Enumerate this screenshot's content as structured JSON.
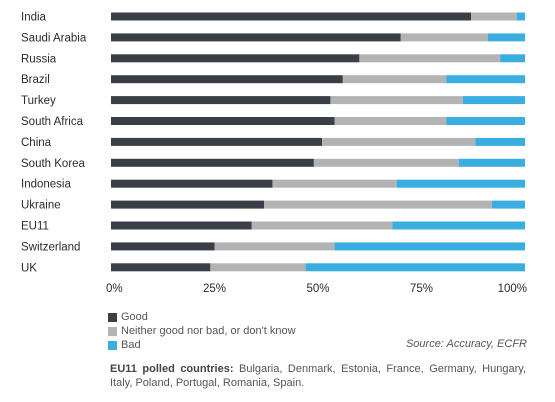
{
  "chart_data": {
    "type": "bar",
    "orientation": "horizontal",
    "stacked": true,
    "categories": [
      "India",
      "Saudi Arabia",
      "Russia",
      "Brazil",
      "Turkey",
      "South Africa",
      "China",
      "South Korea",
      "Indonesia",
      "Ukraine",
      "EU11",
      "Switzerland",
      "UK"
    ],
    "series": [
      {
        "name": "Good",
        "color": "#3a3f47",
        "values": [
          87,
          70,
          60,
          56,
          53,
          54,
          51,
          49,
          39,
          37,
          34,
          25,
          24
        ]
      },
      {
        "name": "Neither good nor bad, or don't know",
        "color": "#b3b3b3",
        "values": [
          11,
          21,
          34,
          25,
          32,
          27,
          37,
          35,
          30,
          55,
          34,
          29,
          23
        ]
      },
      {
        "name": "Bad",
        "color": "#3aaee0",
        "values": [
          2,
          9,
          6,
          19,
          15,
          19,
          12,
          16,
          31,
          8,
          32,
          46,
          53
        ]
      }
    ],
    "xlim": [
      0,
      100
    ],
    "xticks": [
      "0%",
      "25%",
      "50%",
      "75%",
      "100%"
    ],
    "legend_position": "bottom-left"
  },
  "source": "Source: Accuracy, ECFR",
  "footnote": {
    "label": "EU11 polled countries:",
    "text": " Bulgaria, Denmark, Estonia, France, Germany, Hungary, Italy, Poland, Portugal, Romania, Spain."
  }
}
